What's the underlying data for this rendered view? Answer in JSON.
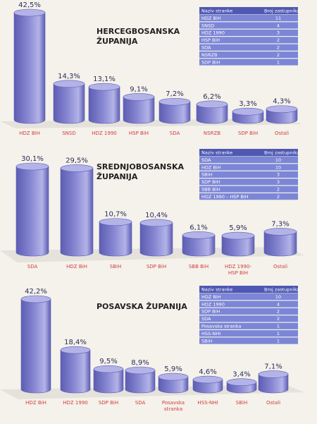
{
  "colors": {
    "bar": "#8787d2",
    "bar_dark": "#5d5db3",
    "bar_top": "#b3b3e8",
    "table_header": "#4f58b2",
    "table_row": "#7c86d6",
    "table_text": "#ffffff",
    "value_text": "#2c2c58",
    "category_text": "#d23c40",
    "title_text": "#222222",
    "floor": "#e4e2da"
  },
  "chart_data": [
    {
      "type": "bar",
      "title": "HERCEGBOSANSKA ŽUPANIJA",
      "title_lines": [
        "HERCEGBOSANSKA",
        "ŽUPANIJA"
      ],
      "categories": [
        [
          "HDZ BiH"
        ],
        [
          "SNSD"
        ],
        [
          "HDZ 1990"
        ],
        [
          "HSP BiH"
        ],
        [
          "SDA"
        ],
        [
          "NSRZB"
        ],
        [
          "SDP BiH"
        ],
        [
          "Ostali"
        ]
      ],
      "values": [
        42.5,
        14.3,
        13.1,
        9.1,
        7.2,
        6.2,
        3.3,
        4.3
      ],
      "value_labels": [
        "42,5%",
        "14,3%",
        "13,1%",
        "9,1%",
        "7,2%",
        "6,2%",
        "3,3%",
        "4,3%"
      ],
      "ylim": [
        0,
        42.5
      ],
      "table": {
        "headers": [
          "Naziv stranke",
          "Broj zastupnika"
        ],
        "rows": [
          [
            "HDZ BiH",
            "11"
          ],
          [
            "SNSD",
            "4"
          ],
          [
            "HDZ 1990",
            "3"
          ],
          [
            "HSP BiH",
            "2"
          ],
          [
            "SDA",
            "2"
          ],
          [
            "NSRZB",
            "2"
          ],
          [
            "SDP BiH",
            "1"
          ]
        ]
      }
    },
    {
      "type": "bar",
      "title": "SREDNJOBOSANSKA ŽUPANIJA",
      "title_lines": [
        "SREDNJOBOSANSKA",
        "ŽUPANIJA"
      ],
      "categories": [
        [
          "SDA"
        ],
        [
          "HDZ BiH"
        ],
        [
          "SBiH"
        ],
        [
          "SDP BiH"
        ],
        [
          "SBB BiH"
        ],
        [
          "HDZ 1990-",
          "HSP BiH"
        ],
        [
          "Ostali"
        ]
      ],
      "values": [
        30.1,
        29.5,
        10.7,
        10.4,
        6.1,
        5.9,
        7.3
      ],
      "value_labels": [
        "30,1%",
        "29,5%",
        "10,7%",
        "10,4%",
        "6,1%",
        "5,9%",
        "7,3%"
      ],
      "ylim": [
        0,
        30.1
      ],
      "table": {
        "headers": [
          "Naziv stranke",
          "Broj zastupnika"
        ],
        "rows": [
          [
            "SDA",
            "10"
          ],
          [
            "HDZ BiH",
            "10"
          ],
          [
            "SBiH",
            "3"
          ],
          [
            "SDP BiH",
            "3"
          ],
          [
            "SBB BiH",
            "2"
          ],
          [
            "HDZ 1990 – HSP BiH",
            "2"
          ]
        ]
      }
    },
    {
      "type": "bar",
      "title": "POSAVSKA ŽUPANIJA",
      "title_lines": [
        "POSAVSKA ŽUPANIJA"
      ],
      "categories": [
        [
          "HDZ BiH"
        ],
        [
          "HDZ 1990"
        ],
        [
          "SDP BiH"
        ],
        [
          "SDA"
        ],
        [
          "Posavska",
          "stranka"
        ],
        [
          "HSS-NHI"
        ],
        [
          "SBiH"
        ],
        [
          "Ostali"
        ]
      ],
      "values": [
        42.2,
        18.4,
        9.5,
        8.9,
        5.9,
        4.6,
        3.4,
        7.1
      ],
      "value_labels": [
        "42,2%",
        "18,4%",
        "9,5%",
        "8,9%",
        "5,9%",
        "4,6%",
        "3,4%",
        "7,1%"
      ],
      "ylim": [
        0,
        42.2
      ],
      "table": {
        "headers": [
          "Naziv stranke",
          "Broj zastupnika"
        ],
        "rows": [
          [
            "HDZ BiH",
            "10"
          ],
          [
            "HDZ 1990",
            "4"
          ],
          [
            "SDP BiH",
            "2"
          ],
          [
            "SDA",
            "2"
          ],
          [
            "Posavska stranka",
            "1"
          ],
          [
            "HSS-NHI",
            "1"
          ],
          [
            "SBiH",
            "1"
          ]
        ]
      }
    }
  ]
}
